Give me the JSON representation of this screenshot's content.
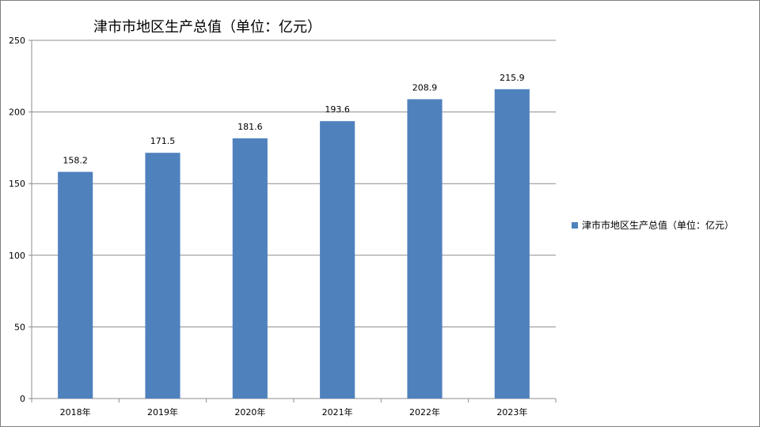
{
  "chart_data": {
    "type": "bar",
    "title": "津市市地区生产总值（单位：亿元）",
    "xlabel": "",
    "ylabel": "",
    "categories": [
      "2018年",
      "2019年",
      "2020年",
      "2021年",
      "2022年",
      "2023年"
    ],
    "series": [
      {
        "name": "津市市地区生产总值（单位：亿元）",
        "values": [
          158.2,
          171.5,
          181.6,
          193.6,
          208.9,
          215.9
        ],
        "color": "#4f81bd"
      }
    ],
    "data_labels": [
      "158.2",
      "171.5",
      "181.6",
      "193.6",
      "208.9",
      "215.9"
    ],
    "ylim": [
      0,
      250
    ],
    "yticks": [
      0,
      50,
      100,
      150,
      200,
      250
    ],
    "ytick_labels": [
      "0",
      "50",
      "100",
      "150",
      "200",
      "250"
    ],
    "grid": true,
    "legend_position": "right"
  }
}
